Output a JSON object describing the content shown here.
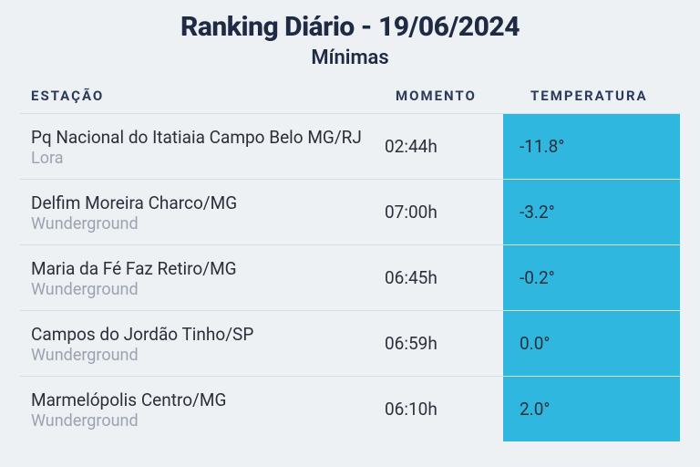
{
  "title": "Ranking Diário - 19/06/2024",
  "subtitle": "Mínimas",
  "columns": {
    "station": "ESTAÇÃO",
    "moment": "MOMENTO",
    "temperature": "TEMPERATURA"
  },
  "temp_highlight_color": "#2fb7e0",
  "text_color": "#2a2f3a",
  "muted_color": "#9aa3b2",
  "heading_color": "#1f2a44",
  "background_color": "#eef1f4",
  "divider_color": "#d8dde5",
  "rows": [
    {
      "station": "Pq Nacional do Itatiaia Campo Belo MG/RJ",
      "source": "Lora",
      "moment": "02:44h",
      "temperature": "-11.8°"
    },
    {
      "station": "Delfim Moreira Charco/MG",
      "source": "Wunderground",
      "moment": "07:00h",
      "temperature": "-3.2°"
    },
    {
      "station": "Maria da Fé Faz Retiro/MG",
      "source": "Wunderground",
      "moment": "06:45h",
      "temperature": "-0.2°"
    },
    {
      "station": "Campos do Jordão Tinho/SP",
      "source": "Wunderground",
      "moment": "06:59h",
      "temperature": "0.0°"
    },
    {
      "station": "Marmelópolis Centro/MG",
      "source": "Wunderground",
      "moment": "06:10h",
      "temperature": "2.0°"
    }
  ]
}
